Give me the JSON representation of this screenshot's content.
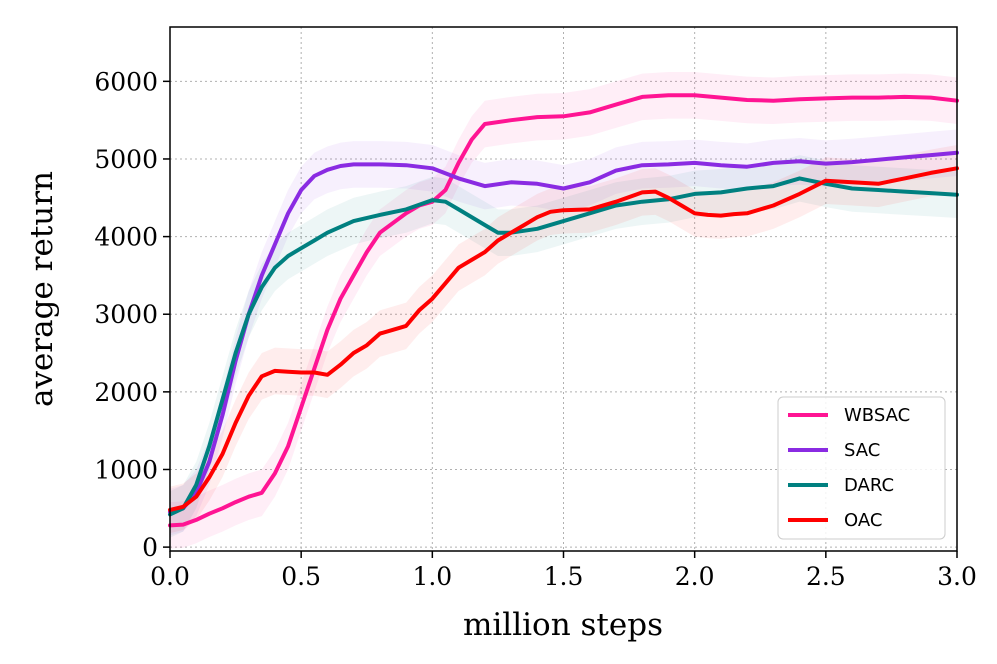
{
  "chart_data": {
    "type": "line",
    "title": "",
    "xlabel": "million steps",
    "ylabel": "average return",
    "xlim": [
      0,
      3.0
    ],
    "ylim": [
      -50,
      6700
    ],
    "xticks": [
      0.0,
      0.5,
      1.0,
      1.5,
      2.0,
      2.5,
      3.0
    ],
    "xtick_labels": [
      "0.0",
      "0.5",
      "1.0",
      "1.5",
      "2.0",
      "2.5",
      "3.0"
    ],
    "yticks": [
      0,
      1000,
      2000,
      3000,
      4000,
      5000,
      6000
    ],
    "ytick_labels": [
      "0",
      "1000",
      "2000",
      "3000",
      "4000",
      "5000",
      "6000"
    ],
    "grid": true,
    "legend_position": "bottom-right",
    "series": [
      {
        "name": "WBSAC",
        "color": "#ff1493",
        "x": [
          0.0,
          0.05,
          0.1,
          0.15,
          0.2,
          0.25,
          0.3,
          0.35,
          0.4,
          0.45,
          0.5,
          0.55,
          0.6,
          0.65,
          0.7,
          0.75,
          0.8,
          0.9,
          0.95,
          1.0,
          1.05,
          1.1,
          1.15,
          1.2,
          1.3,
          1.4,
          1.5,
          1.6,
          1.7,
          1.8,
          1.9,
          2.0,
          2.1,
          2.2,
          2.3,
          2.4,
          2.5,
          2.6,
          2.7,
          2.8,
          2.9,
          3.0
        ],
        "y": [
          280,
          290,
          350,
          430,
          500,
          580,
          650,
          700,
          950,
          1300,
          1800,
          2300,
          2800,
          3200,
          3500,
          3800,
          4050,
          4300,
          4400,
          4450,
          4600,
          4950,
          5250,
          5450,
          5500,
          5540,
          5550,
          5600,
          5700,
          5800,
          5820,
          5820,
          5790,
          5760,
          5750,
          5770,
          5780,
          5790,
          5790,
          5800,
          5790,
          5750
        ]
      },
      {
        "name": "SAC",
        "color": "#8a2be2",
        "x": [
          0.0,
          0.05,
          0.1,
          0.15,
          0.2,
          0.25,
          0.3,
          0.35,
          0.4,
          0.45,
          0.5,
          0.55,
          0.6,
          0.65,
          0.7,
          0.8,
          0.9,
          1.0,
          1.1,
          1.2,
          1.3,
          1.4,
          1.5,
          1.6,
          1.7,
          1.8,
          1.9,
          2.0,
          2.1,
          2.2,
          2.3,
          2.4,
          2.5,
          2.6,
          2.7,
          2.8,
          2.9,
          3.0
        ],
        "y": [
          450,
          500,
          700,
          1100,
          1700,
          2400,
          3000,
          3500,
          3900,
          4300,
          4600,
          4780,
          4860,
          4910,
          4930,
          4930,
          4920,
          4880,
          4750,
          4650,
          4700,
          4680,
          4620,
          4700,
          4850,
          4920,
          4930,
          4950,
          4920,
          4900,
          4950,
          4970,
          4940,
          4960,
          4990,
          5020,
          5050,
          5080
        ]
      },
      {
        "name": "DARC",
        "color": "#008080",
        "x": [
          0.0,
          0.05,
          0.1,
          0.15,
          0.2,
          0.25,
          0.3,
          0.35,
          0.4,
          0.45,
          0.5,
          0.55,
          0.6,
          0.7,
          0.8,
          0.9,
          1.0,
          1.05,
          1.1,
          1.2,
          1.25,
          1.3,
          1.4,
          1.5,
          1.6,
          1.7,
          1.8,
          1.9,
          2.0,
          2.1,
          2.2,
          2.3,
          2.4,
          2.5,
          2.6,
          2.7,
          2.8,
          2.9,
          3.0
        ],
        "y": [
          420,
          500,
          800,
          1300,
          1900,
          2500,
          3000,
          3350,
          3600,
          3750,
          3850,
          3950,
          4050,
          4200,
          4280,
          4350,
          4470,
          4450,
          4350,
          4150,
          4050,
          4050,
          4100,
          4200,
          4300,
          4400,
          4450,
          4480,
          4550,
          4570,
          4620,
          4650,
          4750,
          4680,
          4620,
          4600,
          4580,
          4560,
          4540
        ]
      },
      {
        "name": "OAC",
        "color": "#ff0000",
        "x": [
          0.0,
          0.05,
          0.1,
          0.15,
          0.2,
          0.25,
          0.3,
          0.35,
          0.4,
          0.45,
          0.5,
          0.55,
          0.6,
          0.65,
          0.7,
          0.75,
          0.8,
          0.85,
          0.9,
          0.95,
          1.0,
          1.05,
          1.1,
          1.15,
          1.2,
          1.25,
          1.3,
          1.35,
          1.4,
          1.45,
          1.5,
          1.6,
          1.7,
          1.8,
          1.85,
          1.9,
          1.95,
          2.0,
          2.05,
          2.1,
          2.15,
          2.2,
          2.3,
          2.4,
          2.5,
          2.6,
          2.7,
          2.8,
          2.9,
          3.0
        ],
        "y": [
          480,
          520,
          650,
          900,
          1200,
          1600,
          1950,
          2200,
          2270,
          2260,
          2250,
          2250,
          2220,
          2350,
          2500,
          2600,
          2750,
          2800,
          2850,
          3050,
          3200,
          3400,
          3600,
          3700,
          3800,
          3950,
          4050,
          4150,
          4250,
          4320,
          4340,
          4350,
          4450,
          4570,
          4580,
          4500,
          4400,
          4300,
          4280,
          4270,
          4290,
          4300,
          4400,
          4550,
          4720,
          4700,
          4680,
          4750,
          4820,
          4880
        ]
      }
    ]
  }
}
